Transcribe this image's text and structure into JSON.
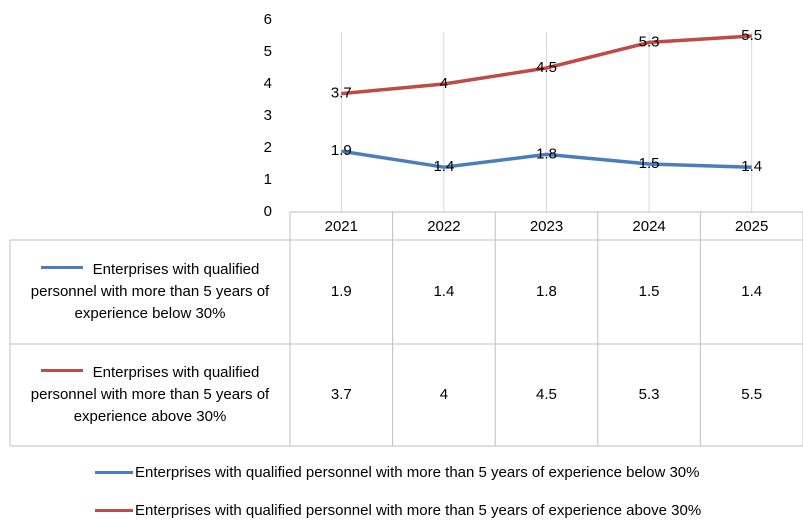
{
  "chart_data": {
    "type": "line",
    "categories": [
      "2021",
      "2022",
      "2023",
      "2024",
      "2025"
    ],
    "series": [
      {
        "name": "Enterprises with qualified personnel with more than 5 years of experience below 30%",
        "color": "#4a7ebb",
        "values": [
          1.9,
          1.4,
          1.8,
          1.5,
          1.4
        ]
      },
      {
        "name": "Enterprises with qualified personnel with more than 5 years of experience above 30%",
        "color": "#be4b48",
        "values": [
          3.7,
          4,
          4.5,
          5.3,
          5.5
        ]
      }
    ],
    "ylim": [
      0,
      6
    ],
    "yticks": [
      0,
      1,
      2,
      3,
      4,
      5,
      6
    ],
    "grid": true,
    "data_table": true
  }
}
